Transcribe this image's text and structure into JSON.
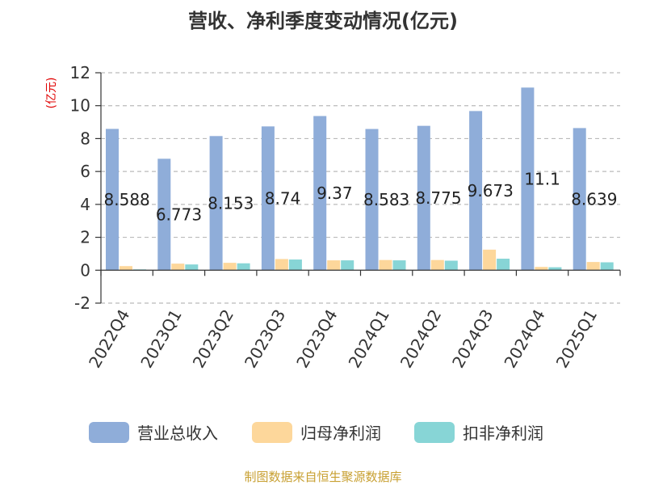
{
  "source": "制图数据来自恒生聚源数据库",
  "source_color": "#c8a032",
  "chart_data": {
    "type": "bar",
    "title": "营收、净利季度变动情况(亿元)",
    "ylabel": "(亿元)",
    "ylabel_color": "#e00000",
    "xlabel": "",
    "ylim": [
      -2,
      12
    ],
    "yticks": [
      -2,
      0,
      2,
      4,
      6,
      8,
      10,
      12
    ],
    "grid": true,
    "legend": "bottom",
    "categories": [
      "2022Q4",
      "2023Q1",
      "2023Q2",
      "2023Q3",
      "2023Q4",
      "2024Q1",
      "2024Q2",
      "2024Q3",
      "2024Q4",
      "2025Q1"
    ],
    "series": [
      {
        "name": "营业总收入",
        "color": "#8fadd9",
        "show_labels": true,
        "values": [
          8.588,
          6.773,
          8.153,
          8.74,
          9.37,
          8.583,
          8.775,
          9.673,
          11.1,
          8.639
        ]
      },
      {
        "name": "归母净利润",
        "color": "#fdd79b",
        "show_labels": false,
        "values": [
          0.25,
          0.4,
          0.45,
          0.68,
          0.6,
          0.62,
          0.62,
          1.25,
          0.2,
          0.5
        ]
      },
      {
        "name": "扣非净利润",
        "color": "#87d5d6",
        "show_labels": false,
        "values": [
          0.05,
          0.35,
          0.42,
          0.65,
          0.6,
          0.6,
          0.58,
          0.7,
          0.18,
          0.48
        ]
      }
    ]
  }
}
